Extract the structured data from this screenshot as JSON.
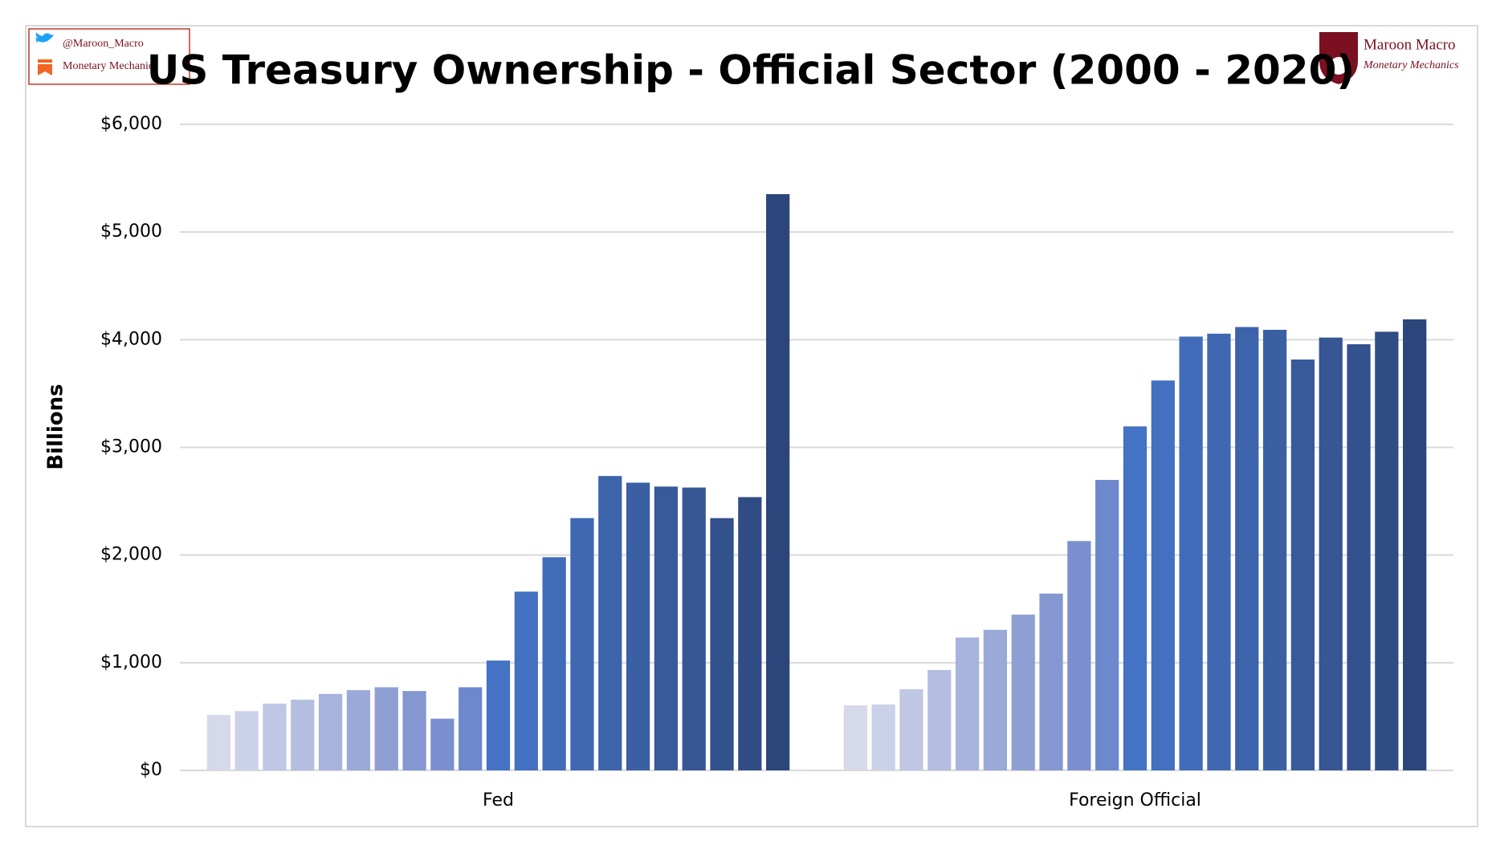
{
  "branding": {
    "handle": "@Maroon_Macro",
    "left_name": "Monetary Mechanics",
    "right_title": "Maroon Macro",
    "right_subtitle": "Monetary Mechanics"
  },
  "chart_data": {
    "type": "bar",
    "title": "US Treasury Ownership - Official Sector (2000 - 2020)",
    "y_label": "Billions",
    "categories": [
      "Fed",
      "Foreign Official"
    ],
    "series": [
      {
        "color": "#d5d9ea",
        "values": [
          515,
          604
        ]
      },
      {
        "color": "#cbd1e8",
        "values": [
          550,
          612
        ]
      },
      {
        "color": "#bfc7e4",
        "values": [
          620,
          754
        ]
      },
      {
        "color": "#b4bee0",
        "values": [
          657,
          932
        ]
      },
      {
        "color": "#a7b3dc",
        "values": [
          710,
          1234
        ]
      },
      {
        "color": "#9aa9d8",
        "values": [
          745,
          1305
        ]
      },
      {
        "color": "#8f9fd4",
        "values": [
          772,
          1447
        ]
      },
      {
        "color": "#8597d1",
        "values": [
          737,
          1642
        ]
      },
      {
        "color": "#7b8fd0",
        "values": [
          480,
          2130
        ]
      },
      {
        "color": "#6e88cd",
        "values": [
          772,
          2698
        ]
      },
      {
        "color": "#4472c4",
        "values": [
          1020,
          3195
        ]
      },
      {
        "color": "#4370c0",
        "values": [
          1660,
          3621
        ]
      },
      {
        "color": "#416cba",
        "values": [
          1980,
          4029
        ]
      },
      {
        "color": "#3f67b2",
        "values": [
          2343,
          4056
        ]
      },
      {
        "color": "#3d63aa",
        "values": [
          2734,
          4118
        ]
      },
      {
        "color": "#3a5fa3",
        "values": [
          2672,
          4092
        ]
      },
      {
        "color": "#385a9b",
        "values": [
          2636,
          3816
        ]
      },
      {
        "color": "#365694",
        "values": [
          2627,
          4020
        ]
      },
      {
        "color": "#33518c",
        "values": [
          2343,
          3958
        ]
      },
      {
        "color": "#304c85",
        "values": [
          2538,
          4074
        ]
      },
      {
        "color": "#2c457a",
        "values": [
          5352,
          4189
        ]
      }
    ],
    "ylim": [
      0,
      6000
    ],
    "yticks": [
      {
        "value": 0,
        "label": "$0"
      },
      {
        "value": 1000,
        "label": "$1,000"
      },
      {
        "value": 2000,
        "label": "$2,000"
      },
      {
        "value": 3000,
        "label": "$3,000"
      },
      {
        "value": 4000,
        "label": "$4,000"
      },
      {
        "value": 5000,
        "label": "$5,000"
      },
      {
        "value": 6000,
        "label": "$6,000"
      }
    ],
    "grid": true
  }
}
